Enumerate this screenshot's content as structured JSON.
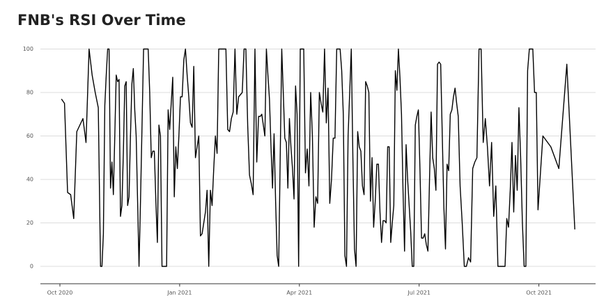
{
  "chart_data": {
    "type": "line",
    "title": "FNB's RSI Over Time",
    "color": "#000000",
    "grid": true,
    "xlim": [
      "2020-10",
      "2021-11"
    ],
    "xticks": [
      {
        "value": "2020-10",
        "label": "Oct 2020"
      },
      {
        "value": "2021-01",
        "label": "Jan 2021"
      },
      {
        "value": "2021-04",
        "label": "Apr 2021"
      },
      {
        "value": "2021-07",
        "label": "Jul 2021"
      },
      {
        "value": "2021-10",
        "label": "Oct 2021"
      }
    ],
    "ylim": [
      -8,
      104
    ],
    "yticks": [
      0,
      20,
      40,
      60,
      80,
      100
    ],
    "x": [
      "2020-10",
      "2020-10",
      "2020-10",
      "2020-10",
      "2020-10",
      "2020-10",
      "2020-10",
      "2020-10",
      "2020-10",
      "2020-10",
      "2020-10",
      "2020-10",
      "2020-10",
      "2020-11",
      "2020-11",
      "2020-11",
      "2020-11",
      "2020-11",
      "2020-11",
      "2020-11",
      "2020-11",
      "2020-11",
      "2020-11",
      "2020-11",
      "2020-11",
      "2020-11",
      "2020-11",
      "2020-11",
      "2020-11",
      "2020-11",
      "2020-11",
      "2020-11",
      "2020-11",
      "2020-11",
      "2020-11",
      "2020-11",
      "2020-11",
      "2020-11",
      "2020-11",
      "2020-11",
      "2020-11",
      "2020-12",
      "2020-12",
      "2020-12",
      "2020-12",
      "2020-12",
      "2020-12",
      "2020-12",
      "2020-12",
      "2020-12",
      "2020-12",
      "2020-12",
      "2020-12",
      "2020-12",
      "2020-12",
      "2020-12",
      "2020-12",
      "2020-12",
      "2020-12",
      "2020-12",
      "2020-12",
      "2020-12",
      "2020-12",
      "2020-12",
      "2020-12",
      "2020-12",
      "2020-12",
      "2021-01",
      "2021-01",
      "2021-01",
      "2021-01",
      "2021-01",
      "2021-01",
      "2021-01",
      "2021-01",
      "2021-01",
      "2021-01",
      "2021-01",
      "2021-01",
      "2021-01",
      "2021-01",
      "2021-01",
      "2021-01",
      "2021-01",
      "2021-01",
      "2021-01",
      "2021-01",
      "2021-01",
      "2021-01",
      "2021-01",
      "2021-01",
      "2021-02",
      "2021-02",
      "2021-02",
      "2021-02",
      "2021-02",
      "2021-02",
      "2021-02",
      "2021-02",
      "2021-02",
      "2021-02",
      "2021-02",
      "2021-02",
      "2021-02",
      "2021-02",
      "2021-02",
      "2021-02",
      "2021-02",
      "2021-02",
      "2021-02",
      "2021-02",
      "2021-02",
      "2021-02",
      "2021-03",
      "2021-03",
      "2021-03",
      "2021-03",
      "2021-03",
      "2021-03",
      "2021-03",
      "2021-03",
      "2021-03",
      "2021-03",
      "2021-03",
      "2021-03",
      "2021-03",
      "2021-03",
      "2021-03",
      "2021-03",
      "2021-03",
      "2021-03",
      "2021-03",
      "2021-03",
      "2021-03",
      "2021-03",
      "2021-03",
      "2021-03",
      "2021-03",
      "2021-03",
      "2021-04",
      "2021-04",
      "2021-04",
      "2021-04",
      "2021-04",
      "2021-04",
      "2021-04",
      "2021-04",
      "2021-04",
      "2021-04",
      "2021-04",
      "2021-04",
      "2021-04",
      "2021-04",
      "2021-04",
      "2021-04",
      "2021-04",
      "2021-04",
      "2021-04",
      "2021-04",
      "2021-04",
      "2021-04",
      "2021-04",
      "2021-05",
      "2021-05",
      "2021-05",
      "2021-05",
      "2021-05",
      "2021-05",
      "2021-05",
      "2021-05",
      "2021-05",
      "2021-05",
      "2021-05",
      "2021-05",
      "2021-05",
      "2021-05",
      "2021-05",
      "2021-05",
      "2021-05",
      "2021-05",
      "2021-05",
      "2021-05",
      "2021-05",
      "2021-05",
      "2021-05",
      "2021-05",
      "2021-05",
      "2021-06",
      "2021-06",
      "2021-06",
      "2021-06",
      "2021-06",
      "2021-06",
      "2021-06",
      "2021-06",
      "2021-06",
      "2021-06",
      "2021-06",
      "2021-06",
      "2021-06",
      "2021-06",
      "2021-06",
      "2021-06",
      "2021-06",
      "2021-06",
      "2021-06",
      "2021-06",
      "2021-06",
      "2021-06",
      "2021-06",
      "2021-06",
      "2021-06",
      "2021-06",
      "2021-07",
      "2021-07",
      "2021-07",
      "2021-07",
      "2021-07",
      "2021-07",
      "2021-07",
      "2021-07",
      "2021-07",
      "2021-07",
      "2021-07",
      "2021-07",
      "2021-07",
      "2021-07",
      "2021-07",
      "2021-07",
      "2021-07",
      "2021-07",
      "2021-07",
      "2021-07",
      "2021-07",
      "2021-07",
      "2021-07",
      "2021-07",
      "2021-07",
      "2021-08",
      "2021-08",
      "2021-08",
      "2021-08",
      "2021-08",
      "2021-08",
      "2021-08",
      "2021-08",
      "2021-08",
      "2021-08",
      "2021-08",
      "2021-08",
      "2021-08",
      "2021-08",
      "2021-08",
      "2021-08",
      "2021-08",
      "2021-08",
      "2021-08",
      "2021-09",
      "2021-09",
      "2021-09",
      "2021-09",
      "2021-09",
      "2021-09",
      "2021-09",
      "2021-09",
      "2021-09",
      "2021-09",
      "2021-09",
      "2021-09",
      "2021-09",
      "2021-09",
      "2021-09",
      "2021-09",
      "2021-09",
      "2021-09",
      "2021-09",
      "2021-09",
      "2021-09",
      "2021-09",
      "2021-09",
      "2021-10",
      "2021-10",
      "2021-10",
      "2021-10",
      "2021-10"
    ],
    "values": [
      77,
      75,
      34,
      33,
      22,
      62,
      65,
      68,
      57,
      100,
      88,
      80,
      73,
      0,
      0,
      15,
      74,
      88,
      100,
      100,
      36,
      48,
      33,
      60,
      88,
      85,
      86,
      23,
      28,
      52,
      83,
      85,
      28,
      32,
      60,
      84,
      91,
      72,
      60,
      30,
      0,
      30,
      65,
      100,
      100,
      100,
      100,
      80,
      50,
      53,
      53,
      30,
      11,
      65,
      60,
      0,
      0,
      0,
      0,
      72,
      63,
      75,
      87,
      32,
      55,
      45,
      60,
      78,
      78,
      95,
      100,
      88,
      78,
      66,
      64,
      92,
      50,
      55,
      60,
      14,
      15,
      20,
      25,
      35,
      0,
      35,
      28,
      45,
      60,
      52,
      100,
      100,
      100,
      100,
      100,
      63,
      62,
      68,
      71,
      100,
      70,
      78,
      79,
      80,
      100,
      100,
      65,
      42,
      38,
      33,
      100,
      48,
      69,
      69,
      70,
      65,
      60,
      100,
      88,
      77,
      55,
      36,
      61,
      30,
      5,
      0,
      50,
      100,
      80,
      59,
      57,
      36,
      68,
      55,
      45,
      31,
      83,
      70,
      0,
      100,
      100,
      100,
      43,
      54,
      37,
      80,
      60,
      18,
      32,
      29,
      80,
      75,
      71,
      100,
      66,
      82,
      29,
      40,
      59,
      59,
      100,
      100,
      100,
      90,
      70,
      5,
      0,
      60,
      80,
      100,
      50,
      8,
      0,
      62,
      55,
      53,
      37,
      33,
      85,
      83,
      80,
      30,
      50,
      18,
      30,
      47,
      47,
      25,
      11,
      21,
      21,
      20,
      55,
      55,
      11,
      20,
      28,
      90,
      81,
      100,
      87,
      70,
      35,
      7,
      56,
      40,
      28,
      16,
      0,
      0,
      65,
      69,
      72,
      45,
      13,
      13,
      15,
      10,
      7,
      40,
      71,
      50,
      45,
      35,
      93,
      94,
      93,
      60,
      27,
      8,
      47,
      44,
      70,
      72,
      78,
      82,
      75,
      69,
      37,
      20,
      0,
      0,
      4,
      2,
      45,
      48,
      50,
      100,
      100,
      57,
      68,
      55,
      37,
      57,
      23,
      37,
      0,
      0,
      0,
      0,
      0,
      22,
      18,
      35,
      57,
      25,
      51,
      35,
      73,
      50,
      20,
      0,
      0,
      90,
      100,
      100,
      100,
      80,
      80,
      26,
      60,
      55,
      45,
      93,
      17
    ]
  }
}
